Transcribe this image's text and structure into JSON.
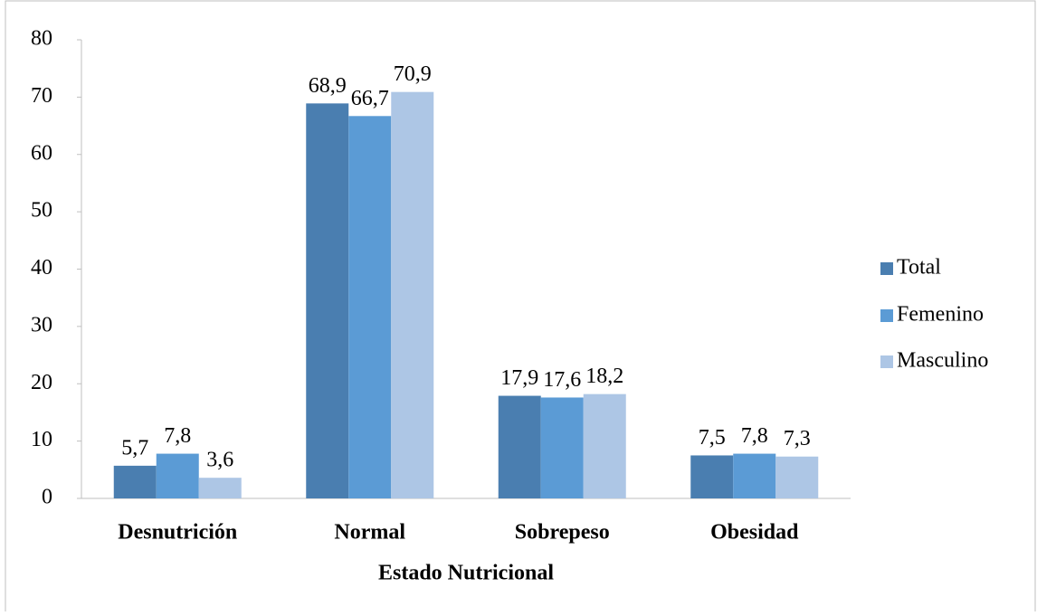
{
  "chart_data": {
    "type": "bar",
    "x_label": "Estado Nutricional",
    "categories": [
      "Desnutrición",
      "Normal",
      "Sobrepeso",
      "Obesidad"
    ],
    "series": [
      {
        "name": "Total",
        "color": "#4a7eb0",
        "values": [
          5.7,
          68.9,
          17.9,
          7.5
        ],
        "value_labels": [
          "5,7",
          "68,9",
          "17,9",
          "7,5"
        ]
      },
      {
        "name": "Femenino",
        "color": "#5b9bd5",
        "values": [
          7.8,
          66.7,
          17.6,
          7.8
        ],
        "value_labels": [
          "7,8",
          "66,7",
          "17,6",
          "7,8"
        ]
      },
      {
        "name": "Masculino",
        "color": "#adc6e5",
        "values": [
          3.6,
          70.9,
          18.2,
          7.3
        ],
        "value_labels": [
          "3,6",
          "70,9",
          "18,2",
          "7,3"
        ]
      }
    ],
    "ylim": [
      0,
      80
    ],
    "yticks": [
      0,
      10,
      20,
      30,
      40,
      50,
      60,
      70,
      80
    ],
    "grid": false,
    "legend": "right"
  }
}
